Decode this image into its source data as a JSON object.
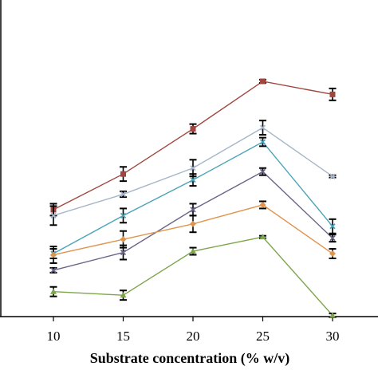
{
  "chart_data": {
    "type": "line",
    "title": "",
    "xlabel": "Substrate concentration (% w/v)",
    "ylabel": "",
    "x": [
      10,
      15,
      20,
      25,
      30
    ],
    "x_tick_labels": [
      "10",
      "15",
      "20",
      "25",
      "30"
    ],
    "ylim": [
      0,
      100
    ],
    "grid": false,
    "legend": "none",
    "series": [
      {
        "color": "#a0463f",
        "marker": "square",
        "values": [
          45.0,
          60.0,
          79.0,
          99.0,
          93.5
        ],
        "errors": [
          2.5,
          3.0,
          2.0,
          0.7,
          2.5
        ]
      },
      {
        "color": "#a6b6c9",
        "marker": "x",
        "values": [
          42.5,
          51.5,
          62.5,
          79.5,
          59.0
        ],
        "errors": [
          4.0,
          1.2,
          3.5,
          3.0,
          0.5
        ]
      },
      {
        "color": "#4aa3b8",
        "marker": "x",
        "values": [
          26.5,
          42.5,
          57.5,
          73.5,
          38.0
        ],
        "errors": [
          2.0,
          3.0,
          2.5,
          1.8,
          3.0
        ]
      },
      {
        "color": "#6b6489",
        "marker": "x",
        "values": [
          19.5,
          27.0,
          45.0,
          61.0,
          33.0
        ],
        "errors": [
          1.0,
          3.0,
          2.5,
          1.5,
          1.5
        ]
      },
      {
        "color": "#e0954f",
        "marker": "diamond",
        "values": [
          26.0,
          32.5,
          39.0,
          47.0,
          26.5
        ],
        "errors": [
          3.5,
          3.5,
          3.5,
          1.5,
          2.0
        ]
      },
      {
        "color": "#7da64a",
        "marker": "triangle",
        "values": [
          10.5,
          9.0,
          27.5,
          33.5,
          0.5
        ],
        "errors": [
          2.0,
          2.0,
          1.5,
          0.5,
          0.8
        ]
      }
    ]
  }
}
